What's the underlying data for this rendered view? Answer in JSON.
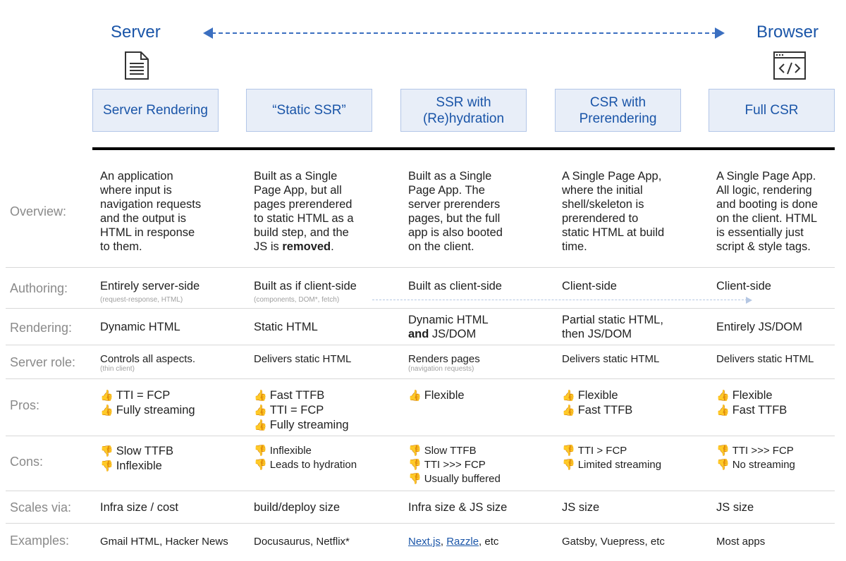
{
  "header": {
    "left_label": "Server",
    "right_label": "Browser",
    "columns": [
      "Server Rendering",
      "“Static SSR”",
      "SSR with\n(Re)hydration",
      "CSR with\nPrerendering",
      "Full CSR"
    ]
  },
  "rows": {
    "overview": {
      "label": "Overview:",
      "c1": "An application\nwhere input is\nnavigation requests\nand the output is\nHTML in response\nto them.",
      "c2_pre": "Built as a Single\nPage App, but all\npages prerendered\nto static HTML as a\nbuild step, and the\nJS is ",
      "c2_bold": "removed",
      "c2_post": ".",
      "c3": "Built as a Single\nPage App. The\nserver prerenders\npages, but the full\napp is also booted\non the client.",
      "c4": "A Single Page App,\nwhere the initial\nshell/skeleton is\nprerendered to\nstatic HTML at build\ntime.",
      "c5": "A Single Page App.\nAll logic, rendering\nand booting is done\non the client. HTML\nis essentially just\nscript & style tags."
    },
    "authoring": {
      "label": "Authoring:",
      "c1": "Entirely server-side",
      "c1_sub": "(request-response, HTML)",
      "c2": "Built as if client-side",
      "c2_sub": "(components, DOM*, fetch)",
      "c3": "Built as client-side",
      "c4": "Client-side",
      "c5": "Client-side"
    },
    "rendering": {
      "label": "Rendering:",
      "c1": "Dynamic HTML",
      "c2": "Static HTML",
      "c3_line1": "Dynamic HTML",
      "c3_bold": "and",
      "c3_rest": " JS/DOM",
      "c4": "Partial static HTML,\nthen JS/DOM",
      "c5": "Entirely JS/DOM"
    },
    "server_role": {
      "label": "Server role:",
      "c1": "Controls all aspects.",
      "c1_sub": "(thin client)",
      "c2": "Delivers static HTML",
      "c3": "Renders pages",
      "c3_sub": "(navigation requests)",
      "c4": "Delivers static HTML",
      "c5": "Delivers static HTML"
    },
    "pros": {
      "label": "Pros:",
      "c1": [
        "TTI = FCP",
        "Fully streaming"
      ],
      "c2": [
        "Fast TTFB",
        "TTI = FCP",
        "Fully streaming"
      ],
      "c3": [
        "Flexible"
      ],
      "c4": [
        "Flexible",
        "Fast TTFB"
      ],
      "c5": [
        "Flexible",
        "Fast TTFB"
      ]
    },
    "cons": {
      "label": "Cons:",
      "c1": [
        "Slow TTFB",
        "Inflexible"
      ],
      "c2": [
        "Inflexible",
        "Leads to hydration"
      ],
      "c3": [
        "Slow TTFB",
        "TTI >>> FCP",
        "Usually buffered"
      ],
      "c4": [
        "TTI > FCP",
        "Limited streaming"
      ],
      "c5": [
        "TTI >>> FCP",
        "No streaming"
      ]
    },
    "scales": {
      "label": "Scales via:",
      "c1": "Infra size / cost",
      "c2": "build/deploy size",
      "c3": "Infra size & JS size",
      "c4": "JS size",
      "c5": "JS size"
    },
    "examples": {
      "label": "Examples:",
      "c1": "Gmail HTML, Hacker News",
      "c2": "Docusaurus, Netflix*",
      "c3_link1": "Next.js",
      "c3_sep": ", ",
      "c3_link2": "Razzle",
      "c3_rest": ", etc",
      "c4": "Gatsby, Vuepress, etc",
      "c5": "Most apps"
    }
  },
  "icons": {
    "server": "document-icon",
    "browser": "code-window-icon",
    "pro": "thumbs-up-icon",
    "con": "thumbs-down-icon"
  }
}
